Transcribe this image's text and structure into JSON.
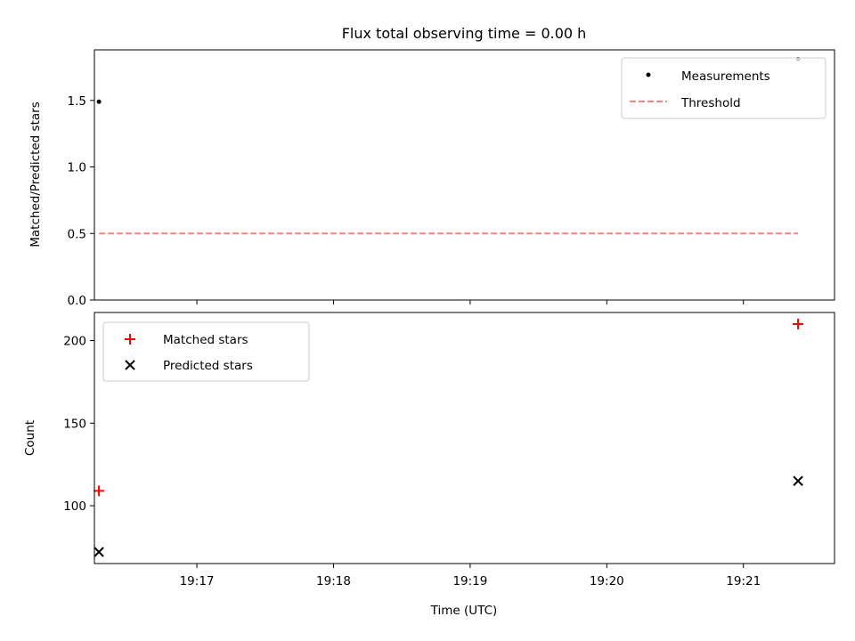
{
  "chart_data": [
    {
      "type": "scatter",
      "title": "Flux total observing time = 0.00 h",
      "xlabel": "",
      "ylabel": "Matched/Predicted stars",
      "xlim": [
        "19:16:15",
        "19:21:40"
      ],
      "ylim": [
        0,
        1.88
      ],
      "yticks": [
        0.0,
        0.5,
        1.0,
        1.5
      ],
      "ytick_labels": [
        "0.0",
        "0.5",
        "1.0",
        "1.5"
      ],
      "xticks": [
        "19:17",
        "19:18",
        "19:19",
        "19:20",
        "19:21"
      ],
      "grid": false,
      "legend": "top-right",
      "series": [
        {
          "name": "Measurements",
          "type": "scatter",
          "marker": "dot",
          "color": "#000000",
          "x": [
            "19:16:17",
            "19:21:24"
          ],
          "y": [
            1.49,
            1.81
          ]
        },
        {
          "name": "Threshold",
          "type": "line",
          "style": "dashed",
          "color": "#ff7f7f",
          "x": [
            "19:16:17",
            "19:21:24"
          ],
          "y": [
            0.5,
            0.5
          ]
        }
      ]
    },
    {
      "type": "scatter",
      "title": "",
      "xlabel": "Time (UTC)",
      "ylabel": "Count",
      "xlim": [
        "19:16:15",
        "19:21:40"
      ],
      "ylim": [
        65,
        217
      ],
      "yticks": [
        100,
        150,
        200
      ],
      "ytick_labels": [
        "100",
        "150",
        "200"
      ],
      "xticks": [
        "19:17",
        "19:18",
        "19:19",
        "19:20",
        "19:21"
      ],
      "xtick_labels": [
        "19:17",
        "19:18",
        "19:19",
        "19:20",
        "19:21"
      ],
      "grid": false,
      "legend": "top-left",
      "series": [
        {
          "name": "Matched stars",
          "marker": "plus",
          "color": "#ff0000",
          "x": [
            "19:16:17",
            "19:21:24"
          ],
          "y": [
            109,
            210
          ]
        },
        {
          "name": "Predicted stars",
          "marker": "x",
          "color": "#000000",
          "x": [
            "19:16:17",
            "19:21:24"
          ],
          "y": [
            72,
            115
          ]
        }
      ]
    }
  ]
}
